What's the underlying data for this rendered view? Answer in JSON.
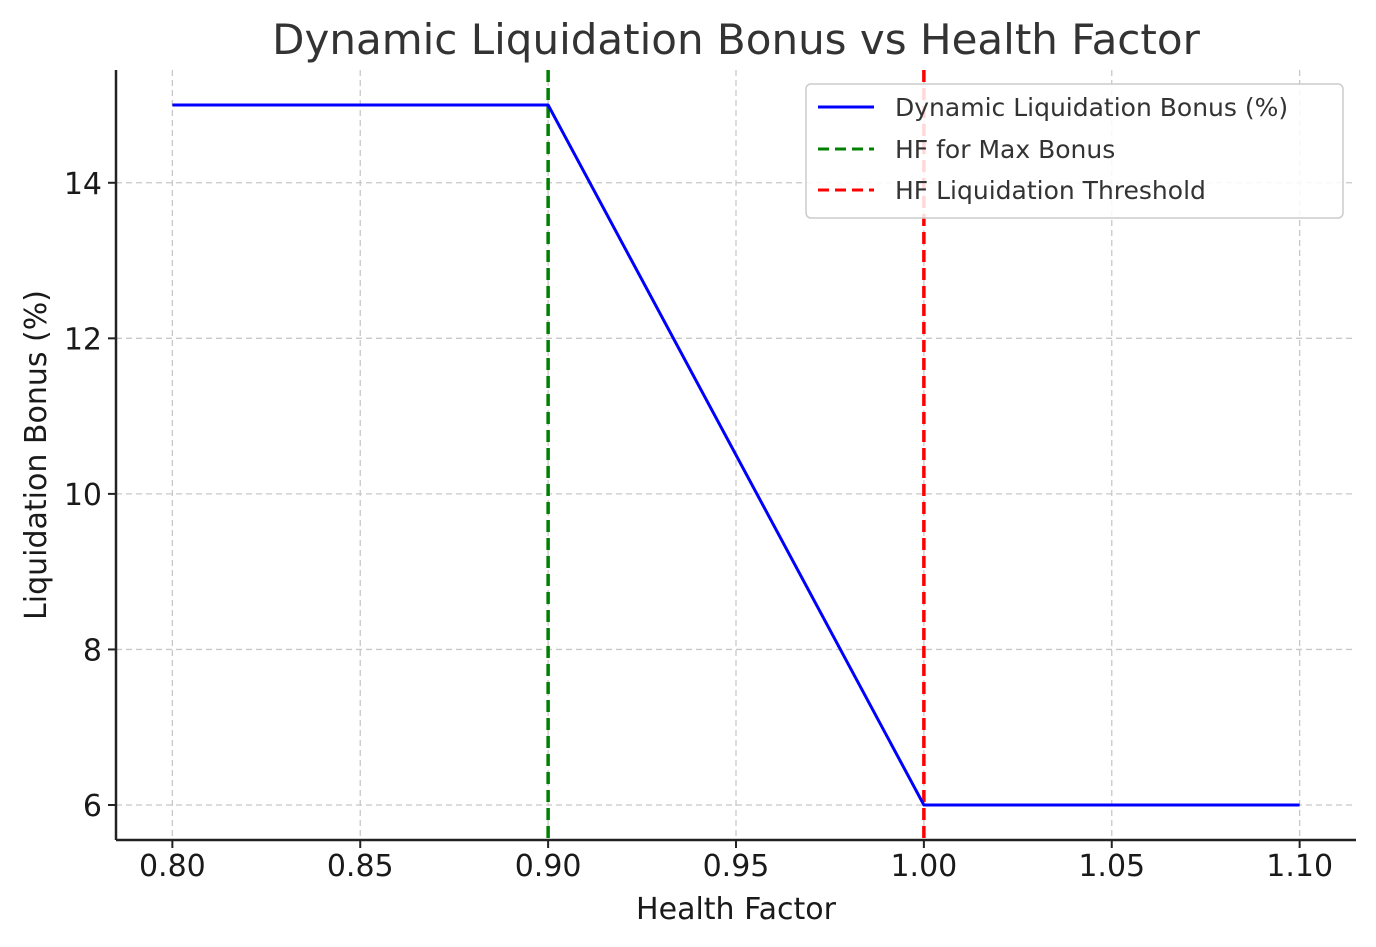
{
  "chart_data": {
    "type": "line",
    "title": "Dynamic Liquidation Bonus vs Health Factor",
    "xlabel": "Health Factor",
    "ylabel": "Liquidation Bonus (%)",
    "xlim": [
      0.785,
      1.115
    ],
    "ylim": [
      5.55,
      15.45
    ],
    "xticks": [
      0.8,
      0.85,
      0.9,
      0.95,
      1.0,
      1.05,
      1.1
    ],
    "xtick_labels": [
      "0.80",
      "0.85",
      "0.90",
      "0.95",
      "1.00",
      "1.05",
      "1.10"
    ],
    "yticks": [
      6,
      8,
      10,
      12,
      14
    ],
    "ytick_labels": [
      "6",
      "8",
      "10",
      "12",
      "14"
    ],
    "grid": true,
    "legend_position": "top-right",
    "series": [
      {
        "name": "Dynamic Liquidation Bonus (%)",
        "color": "#0000ff",
        "style": "solid",
        "x": [
          0.8,
          0.9,
          1.0,
          1.1
        ],
        "y": [
          15,
          15,
          6,
          6
        ]
      }
    ],
    "vlines": [
      {
        "name": "HF for Max Bonus",
        "x": 0.9,
        "color": "#008000",
        "style": "dashed"
      },
      {
        "name": "HF Liquidation Threshold",
        "x": 1.0,
        "color": "#ff0000",
        "style": "dashed"
      }
    ]
  }
}
